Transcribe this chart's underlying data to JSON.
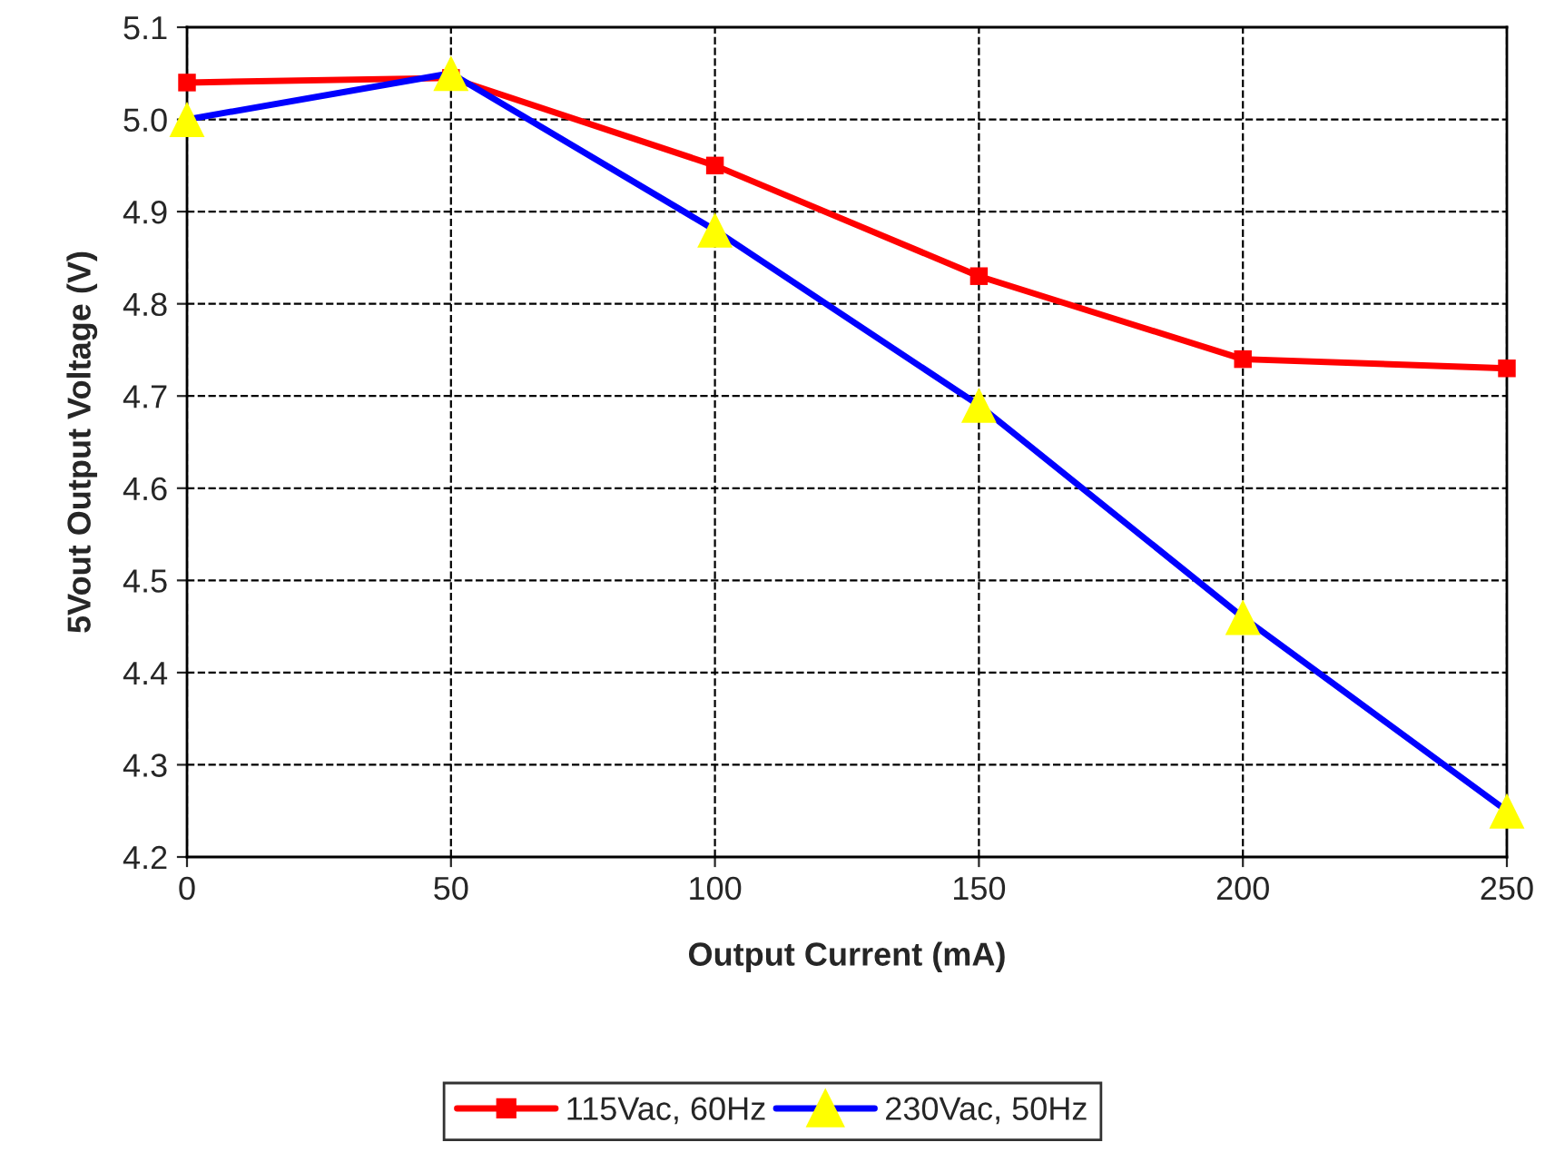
{
  "chart_data": {
    "type": "line",
    "xlabel": "Output Current (mA)",
    "ylabel": "5Vout Output Voltage (V)",
    "x": [
      0,
      50,
      100,
      150,
      200,
      250
    ],
    "series": [
      {
        "name": "115Vac, 60Hz",
        "color": "#ff0000",
        "marker": "square",
        "values": [
          5.04,
          5.045,
          4.95,
          4.83,
          4.74,
          4.73
        ]
      },
      {
        "name": "230Vac, 50Hz",
        "color": "#0000ff",
        "marker": "triangle",
        "colors": [
          "#ffff00",
          "#ffff00",
          "#ffff00",
          "#ffff00",
          "#ffff00",
          "#ffff00"
        ],
        "values": [
          5.0,
          5.05,
          4.88,
          4.69,
          4.46,
          4.25
        ]
      }
    ],
    "xlim": [
      0,
      250
    ],
    "xticks": [
      0,
      50,
      100,
      150,
      200,
      250
    ],
    "ylim": [
      4.2,
      5.1
    ],
    "yticks": [
      4.2,
      4.3,
      4.4,
      4.5,
      4.6,
      4.7,
      4.8,
      4.9,
      {
        "value": 5,
        "label": "5.0"
      },
      5.1
    ],
    "grid": true,
    "line_style": "solid",
    "legend": "bottom"
  }
}
